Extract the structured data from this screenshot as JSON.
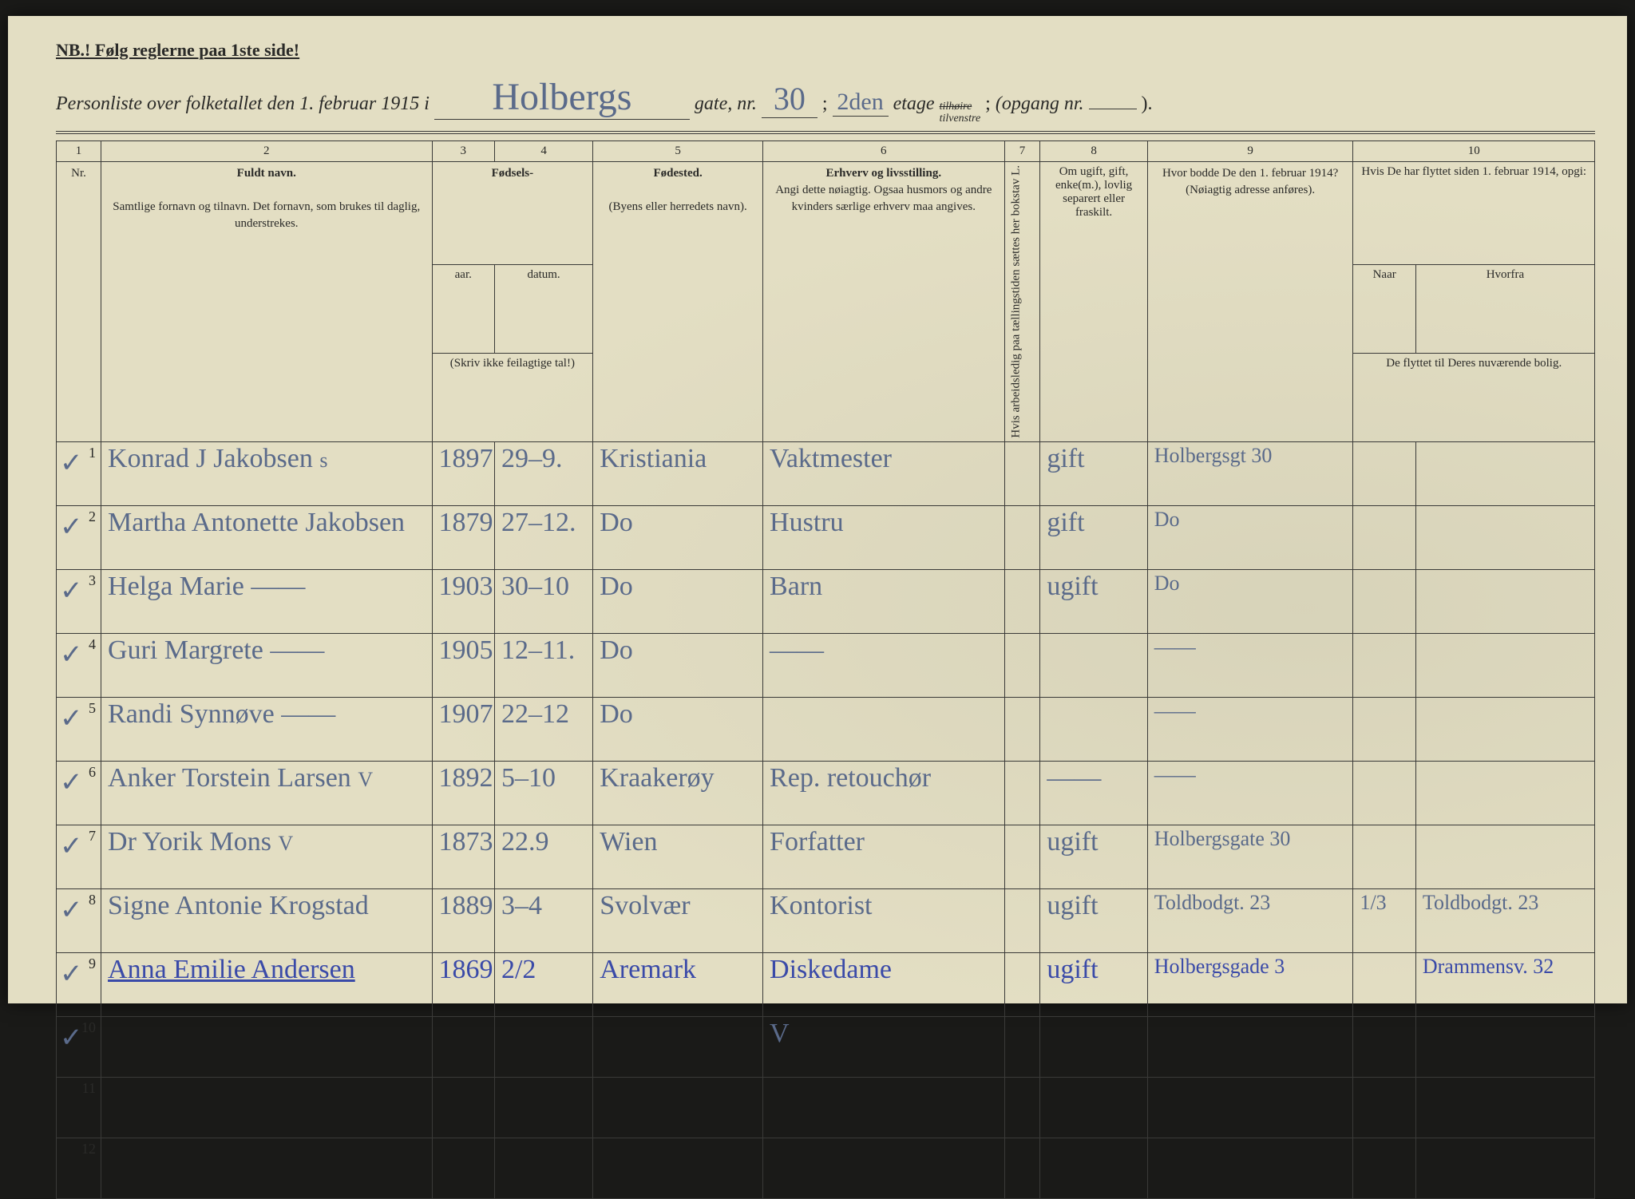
{
  "colors": {
    "paper": "#e3dec3",
    "ink_print": "#2a2a28",
    "ink_hand": "#5a6a8a",
    "ink_hand_blue": "#3a4aa8",
    "border": "#3a3a38"
  },
  "header": {
    "note": "NB.! Følg reglerne paa 1ste side!",
    "line_printed_1": "Personliste over folketallet den 1. februar 1915 i",
    "street_hand": "Holbergs",
    "gate_nr_label": "gate, nr.",
    "gate_nr_hand": "30",
    "semicolon1": ";",
    "etage_hand": "2den",
    "etage_label": "etage",
    "side_strike": "tilhøire",
    "side_keep": "tilvenstre",
    "semicolon2": ";",
    "opgang_label": "(opgang nr.",
    "opgang_hand": "",
    "closing": ")."
  },
  "columns": {
    "numbers": [
      "1",
      "2",
      "3",
      "4",
      "5",
      "6",
      "7",
      "8",
      "9",
      "10"
    ],
    "c1": "Nr.",
    "c2_title": "Fuldt navn.",
    "c2_sub": "Samtlige fornavn og tilnavn. Det fornavn, som brukes til daglig, understrekes.",
    "c34_title": "Fødsels-",
    "c3": "aar.",
    "c4": "datum.",
    "c34_sub": "(Skriv ikke feilagtige tal!)",
    "c5_title": "Fødested.",
    "c5_sub": "(Byens eller herredets navn).",
    "c6_title": "Erhverv og livsstilling.",
    "c6_sub": "Angi dette nøiagtig. Ogsaa husmors og andre kvinders særlige erhverv maa angives.",
    "c7": "Hvis arbeidsledig paa tællingstiden sættes her bokstav L.",
    "c8": "Om ugift, gift, enke(m.), lovlig separert eller fraskilt.",
    "c9_title": "Hvor bodde De den 1. februar 1914?",
    "c9_sub": "(Nøiagtig adresse anføres).",
    "c10_title": "Hvis De har flyttet siden 1. februar 1914, opgi:",
    "c10a": "Naar",
    "c10b": "Hvorfra",
    "c10_sub": "De flyttet til Deres nuværende bolig."
  },
  "rows": [
    {
      "nr": "1",
      "tick": "✓",
      "name": "Konrad J Jakobsen",
      "name_suffix": "s",
      "year": "1897",
      "date": "29–9.",
      "place": "Kristiania",
      "occ": "Vaktmester",
      "c7": "",
      "marital": "gift",
      "addr1914": "Holbergsgt 30",
      "when": "",
      "from": "",
      "ink": "hand"
    },
    {
      "nr": "2",
      "tick": "✓",
      "name": "Martha Antonette Jakobsen",
      "name_suffix": "",
      "year": "1879",
      "date": "27–12.",
      "place": "Do",
      "occ": "Hustru",
      "c7": "",
      "marital": "gift",
      "addr1914": "Do",
      "when": "",
      "from": "",
      "ink": "hand"
    },
    {
      "nr": "3",
      "tick": "✓",
      "name": "Helga Marie    ——",
      "name_suffix": "",
      "year": "1903",
      "date": "30–10",
      "place": "Do",
      "occ": "Barn",
      "c7": "",
      "marital": "ugift",
      "addr1914": "Do",
      "when": "",
      "from": "",
      "ink": "hand"
    },
    {
      "nr": "4",
      "tick": "✓",
      "name": "Guri Margrete   ——",
      "name_suffix": "",
      "year": "1905",
      "date": "12–11.",
      "place": "Do",
      "occ": "——",
      "c7": "",
      "marital": "",
      "addr1914": "——",
      "when": "",
      "from": "",
      "ink": "hand"
    },
    {
      "nr": "5",
      "tick": "✓",
      "name": "Randi Synnøve   ——",
      "name_suffix": "",
      "year": "1907",
      "date": "22–12",
      "place": "Do",
      "occ": "",
      "c7": "",
      "marital": "",
      "addr1914": "——",
      "when": "",
      "from": "",
      "ink": "hand"
    },
    {
      "nr": "6",
      "tick": "✓",
      "name": "Anker Torstein Larsen",
      "name_suffix": "V",
      "year": "1892",
      "date": "5–10",
      "place": "Kraakerøy",
      "occ": "Rep. retouchør",
      "c7": "",
      "marital": "——",
      "addr1914": "——",
      "when": "",
      "from": "",
      "ink": "hand"
    },
    {
      "nr": "7",
      "tick": "✓",
      "name": "Dr Yorik Mons",
      "name_suffix": "V",
      "year": "1873",
      "date": "22.9",
      "place": "Wien",
      "occ": "Forfatter",
      "c7": "",
      "marital": "ugift",
      "addr1914": "Holbergsgate 30",
      "when": "",
      "from": "",
      "ink": "hand"
    },
    {
      "nr": "8",
      "tick": "✓",
      "name": "Signe Antonie Krogstad",
      "name_suffix": "",
      "year": "1889",
      "date": "3–4",
      "place": "Svolvær",
      "occ": "Kontorist",
      "c7": "",
      "marital": "ugift",
      "addr1914": "Toldbodgt. 23",
      "when": "1/3",
      "from": "Toldbodgt. 23",
      "ink": "hand"
    },
    {
      "nr": "9",
      "tick": "✓",
      "name": "Anna Emilie Andersen",
      "name_suffix": "",
      "year": "1869",
      "date": "2/2",
      "place": "Aremark",
      "occ": "Diskedame",
      "c7": "",
      "marital": "ugift",
      "addr1914": "Holbergsgade 3",
      "when": "",
      "from": "Drammensv. 32",
      "ink": "blue"
    },
    {
      "nr": "10",
      "tick": "✓",
      "name": "",
      "name_suffix": "",
      "year": "",
      "date": "",
      "place": "",
      "occ": "V",
      "c7": "",
      "marital": "",
      "addr1914": "",
      "when": "",
      "from": "",
      "ink": "hand"
    },
    {
      "nr": "11",
      "tick": "",
      "name": "",
      "name_suffix": "",
      "year": "",
      "date": "",
      "place": "",
      "occ": "",
      "c7": "",
      "marital": "",
      "addr1914": "",
      "when": "",
      "from": "",
      "ink": "hand"
    },
    {
      "nr": "12",
      "tick": "",
      "name": "",
      "name_suffix": "",
      "year": "",
      "date": "",
      "place": "",
      "occ": "",
      "c7": "",
      "marital": "",
      "addr1914": "",
      "when": "",
      "from": "",
      "ink": "hand"
    }
  ]
}
